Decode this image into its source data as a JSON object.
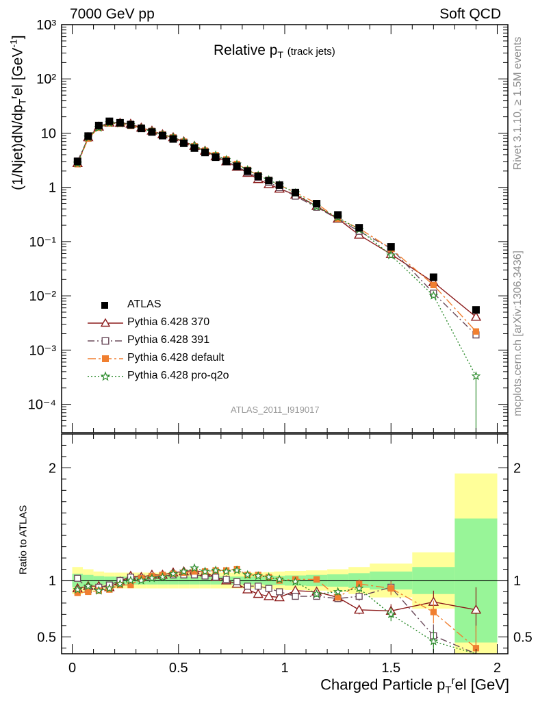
{
  "header": {
    "left": "7000 GeV pp",
    "right": "Soft QCD"
  },
  "side_labels": {
    "rivet": "Rivet 3.1.10, ≥ 1.5M events",
    "source": "mcplots.cern.ch [arXiv:1306.3436]"
  },
  "chart_data": {
    "type": "line",
    "title": "Relative p",
    "title_sub": "T",
    "title_note": "(track jets)",
    "analysis": "ATLAS_2011_I919017",
    "ylabel": "(1/Njet)dN/dp",
    "ylabel_sub": "T",
    "ylabel_sup": "r",
    "ylabel_tail": "el [GeV",
    "ylabel_unit_sup": "-1",
    "ylabel_end": "]",
    "ratio_ylabel": "Ratio to ATLAS",
    "xlabel": "Charged Particle p",
    "xlabel_sub": "T",
    "xlabel_sup": "r",
    "xlabel_tail": "el [GeV]",
    "xlim": [
      -0.05,
      2.05
    ],
    "ylim": [
      3e-05,
      1000
    ],
    "ylog": true,
    "ratio_ylim": [
      0.35,
      2.3
    ],
    "x_ticks": [
      "0",
      "0.5",
      "1",
      "1.5",
      "2"
    ],
    "y_ticks": [
      "10⁻⁴",
      "10⁻³",
      "10⁻²",
      "10⁻¹",
      "1",
      "10",
      "10²",
      "10³"
    ],
    "ratio_ticks": [
      "0.5",
      "1",
      "2"
    ],
    "x": [
      0.025,
      0.075,
      0.125,
      0.175,
      0.225,
      0.275,
      0.325,
      0.375,
      0.425,
      0.475,
      0.525,
      0.575,
      0.625,
      0.675,
      0.725,
      0.775,
      0.825,
      0.875,
      0.925,
      0.975,
      1.05,
      1.15,
      1.25,
      1.35,
      1.5,
      1.7,
      1.9
    ],
    "x_edges": [
      0,
      0.05,
      0.1,
      0.15,
      0.2,
      0.25,
      0.3,
      0.35,
      0.4,
      0.45,
      0.5,
      0.55,
      0.6,
      0.65,
      0.7,
      0.75,
      0.8,
      0.85,
      0.9,
      0.95,
      1.0,
      1.1,
      1.2,
      1.3,
      1.4,
      1.6,
      1.8,
      2.0
    ],
    "data": {
      "name": "ATLAS",
      "values": [
        3.0,
        8.8,
        13.8,
        16.5,
        15.5,
        14.2,
        12.2,
        10.5,
        9.0,
        7.8,
        6.5,
        5.3,
        4.4,
        3.6,
        3.0,
        2.45,
        2.0,
        1.6,
        1.33,
        1.1,
        0.8,
        0.5,
        0.31,
        0.18,
        0.08,
        0.022,
        0.0055
      ],
      "band_inner": [
        0.06,
        0.05,
        0.04,
        0.035,
        0.035,
        0.035,
        0.035,
        0.035,
        0.035,
        0.035,
        0.035,
        0.035,
        0.035,
        0.035,
        0.035,
        0.035,
        0.035,
        0.035,
        0.04,
        0.04,
        0.045,
        0.05,
        0.055,
        0.065,
        0.08,
        0.12,
        0.55
      ],
      "band_outer": [
        0.12,
        0.1,
        0.08,
        0.07,
        0.07,
        0.07,
        0.07,
        0.07,
        0.07,
        0.07,
        0.07,
        0.07,
        0.07,
        0.07,
        0.07,
        0.07,
        0.07,
        0.07,
        0.075,
        0.08,
        0.085,
        0.09,
        0.1,
        0.12,
        0.15,
        0.25,
        0.95
      ]
    },
    "series": [
      {
        "name": "Pythia 6.428 370",
        "color": "#8b1a1a",
        "marker": "triangle-open",
        "dash": "",
        "values": [
          2.79,
          8.36,
          13.11,
          15.51,
          15.35,
          14.77,
          12.56,
          11.03,
          9.45,
          8.35,
          7.02,
          5.78,
          4.71,
          3.71,
          3.0,
          2.38,
          1.84,
          1.41,
          1.14,
          0.94,
          0.73,
          0.45,
          0.263,
          0.133,
          0.0586,
          0.0178,
          0.00408
        ],
        "ratio": [
          0.93,
          0.95,
          0.95,
          0.94,
          0.99,
          1.04,
          1.03,
          1.05,
          1.05,
          1.07,
          1.08,
          1.09,
          1.07,
          1.03,
          1.0,
          0.97,
          0.92,
          0.88,
          0.86,
          0.85,
          0.91,
          0.9,
          0.85,
          0.74,
          0.73,
          0.81,
          0.74
        ],
        "ratio_err": [
          0.01,
          0.01,
          0.01,
          0.01,
          0.01,
          0.01,
          0.01,
          0.01,
          0.01,
          0.01,
          0.01,
          0.01,
          0.01,
          0.01,
          0.01,
          0.01,
          0.01,
          0.01,
          0.015,
          0.015,
          0.02,
          0.025,
          0.03,
          0.04,
          0.06,
          0.1,
          0.2
        ]
      },
      {
        "name": "Pythia 6.428 391",
        "color": "#6a4a5a",
        "marker": "square-open",
        "dash": "10,4,2,4",
        "values": [
          3.06,
          8.1,
          12.96,
          15.84,
          15.5,
          14.63,
          12.44,
          10.82,
          9.36,
          8.19,
          6.83,
          5.56,
          4.58,
          3.71,
          3.03,
          2.42,
          1.9,
          1.52,
          1.24,
          0.99,
          0.688,
          0.43,
          0.26,
          0.155,
          0.0752,
          0.0112,
          0.0019
        ],
        "ratio": [
          1.02,
          0.92,
          0.94,
          0.96,
          1.0,
          1.03,
          1.02,
          1.03,
          1.04,
          1.05,
          1.05,
          1.05,
          1.04,
          1.03,
          1.01,
          0.99,
          0.95,
          0.95,
          0.93,
          0.9,
          0.86,
          0.86,
          0.84,
          0.86,
          0.94,
          0.51,
          0.34
        ],
        "ratio_err": [
          0.01,
          0.01,
          0.01,
          0.01,
          0.01,
          0.01,
          0.01,
          0.01,
          0.01,
          0.01,
          0.01,
          0.01,
          0.01,
          0.01,
          0.01,
          0.01,
          0.01,
          0.01,
          0.015,
          0.015,
          0.02,
          0.025,
          0.03,
          0.04,
          0.06,
          0.1,
          0.2
        ]
      },
      {
        "name": "Pythia 6.428 default",
        "color": "#f07f30",
        "marker": "square-filled",
        "dash": "12,4,3,4",
        "values": [
          2.67,
          7.92,
          12.56,
          15.18,
          14.88,
          13.63,
          12.44,
          10.92,
          9.45,
          8.27,
          6.96,
          5.73,
          4.75,
          3.92,
          3.27,
          2.7,
          2.1,
          1.68,
          1.37,
          1.1,
          0.808,
          0.505,
          0.263,
          0.175,
          0.074,
          0.0158,
          0.0022
        ],
        "ratio": [
          0.89,
          0.9,
          0.91,
          0.92,
          0.96,
          0.96,
          1.02,
          1.04,
          1.05,
          1.06,
          1.07,
          1.08,
          1.08,
          1.09,
          1.09,
          1.1,
          1.05,
          1.05,
          1.03,
          1.0,
          1.01,
          1.01,
          0.85,
          0.97,
          0.93,
          0.72,
          0.4
        ],
        "ratio_err": [
          0.01,
          0.01,
          0.01,
          0.01,
          0.01,
          0.01,
          0.01,
          0.01,
          0.01,
          0.01,
          0.01,
          0.01,
          0.01,
          0.01,
          0.01,
          0.01,
          0.01,
          0.01,
          0.015,
          0.015,
          0.02,
          0.025,
          0.03,
          0.04,
          0.06,
          0.1,
          0.2
        ]
      },
      {
        "name": "Pythia 6.428 pro-q2o",
        "color": "#2a8a2a",
        "marker": "star-open",
        "dash": "2,3",
        "values": [
          2.76,
          8.36,
          12.56,
          15.35,
          15.04,
          14.2,
          12.2,
          10.71,
          9.27,
          8.27,
          7.02,
          5.88,
          4.75,
          3.92,
          3.24,
          2.67,
          2.1,
          1.66,
          1.37,
          1.11,
          0.79,
          0.44,
          0.279,
          0.167,
          0.056,
          0.0101,
          0.00033
        ],
        "ratio": [
          0.92,
          0.95,
          0.91,
          0.93,
          0.97,
          1.0,
          1.0,
          1.02,
          1.03,
          1.06,
          1.08,
          1.11,
          1.08,
          1.09,
          1.08,
          1.09,
          1.05,
          1.04,
          1.03,
          1.01,
          0.99,
          0.88,
          0.9,
          0.93,
          0.7,
          0.46,
          0.06
        ],
        "ratio_err": [
          0.01,
          0.01,
          0.01,
          0.01,
          0.01,
          0.01,
          0.01,
          0.01,
          0.01,
          0.01,
          0.01,
          0.01,
          0.01,
          0.01,
          0.01,
          0.01,
          0.01,
          0.01,
          0.015,
          0.015,
          0.02,
          0.025,
          0.03,
          0.04,
          0.06,
          0.1,
          0.2
        ]
      }
    ],
    "band_colors": {
      "inner": "#98f598",
      "outer": "#ffff99"
    },
    "legend_position": "lower-left"
  }
}
